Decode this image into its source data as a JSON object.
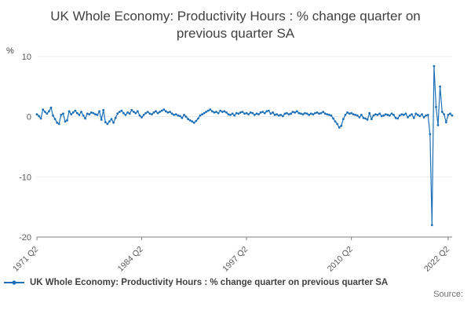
{
  "chart_data": {
    "type": "line",
    "title": "UK Whole Economy: Productivity Hours : % change quarter on previous quarter SA",
    "ylabel": "%",
    "xlabel": "",
    "ylim": [
      -20,
      10
    ],
    "yticks": [
      10,
      0,
      -10,
      -20
    ],
    "grid": true,
    "legend_position": "bottom-left",
    "line_color": "#1d70b8",
    "axis_color": "#808080",
    "tick_label_color": "#595959",
    "x_start": "1971 Q2",
    "x_end": "2022 Q4",
    "frequency": "quarterly",
    "xtick_labels": [
      "1971 Q2",
      "1984 Q2",
      "1997 Q2",
      "2010 Q2",
      "2022 Q2"
    ],
    "xtick_indices": [
      0,
      52,
      104,
      156,
      204
    ],
    "series": [
      {
        "name": "UK Whole Economy: Productivity Hours : % change quarter on previous quarter SA",
        "values": [
          0.4,
          0.1,
          -0.3,
          1.2,
          0.8,
          0.5,
          0.9,
          1.5,
          0.2,
          -0.4,
          -1.0,
          -1.2,
          0.3,
          0.5,
          -0.8,
          -0.6,
          0.9,
          0.4,
          0.7,
          1.0,
          0.6,
          0.3,
          0.8,
          0.2,
          -0.3,
          0.5,
          0.4,
          0.7,
          0.6,
          0.4,
          0.3,
          0.9,
          -0.5,
          1.1,
          -0.9,
          -1.2,
          -0.8,
          -0.4,
          -1.0,
          -0.2,
          0.5,
          0.8,
          1.0,
          0.6,
          0.3,
          0.7,
          0.5,
          1.1,
          0.8,
          0.6,
          0.9,
          0.2,
          -0.1,
          0.3,
          0.6,
          0.8,
          0.5,
          0.4,
          0.7,
          0.9,
          0.6,
          0.8,
          1.0,
          1.2,
          0.9,
          0.7,
          0.8,
          0.5,
          0.3,
          0.4,
          0.2,
          0.1,
          -0.2,
          0.3,
          0.0,
          -0.4,
          -0.6,
          -0.8,
          -1.0,
          -0.7,
          -0.3,
          0.2,
          0.4,
          0.6,
          0.8,
          1.0,
          1.2,
          0.9,
          0.7,
          0.8,
          0.6,
          1.0,
          0.8,
          0.9,
          0.7,
          0.4,
          0.3,
          0.5,
          0.2,
          0.6,
          0.5,
          0.7,
          0.8,
          0.5,
          0.6,
          0.4,
          0.7,
          0.6,
          0.3,
          0.5,
          0.4,
          0.7,
          0.8,
          0.6,
          0.9,
          1.0,
          0.5,
          0.7,
          0.3,
          0.4,
          0.2,
          0.3,
          0.1,
          0.5,
          0.6,
          0.4,
          0.5,
          0.8,
          0.7,
          0.9,
          0.6,
          0.5,
          0.4,
          0.6,
          0.5,
          0.3,
          0.5,
          0.4,
          0.6,
          0.7,
          0.5,
          0.6,
          0.8,
          0.5,
          0.4,
          0.3,
          0.2,
          -0.3,
          -0.8,
          -1.2,
          -1.8,
          -1.5,
          -0.4,
          0.3,
          0.7,
          0.5,
          0.6,
          0.4,
          0.3,
          0.2,
          -0.1,
          0.3,
          -0.2,
          -0.3,
          -0.5,
          0.6,
          -0.4,
          0.2,
          0.4,
          0.3,
          0.5,
          0.1,
          0.2,
          0.4,
          0.3,
          0.2,
          0.5,
          0.3,
          -0.2,
          -0.3,
          0.2,
          0.4,
          0.3,
          0.5,
          -0.1,
          0.2,
          0.4,
          -0.2,
          0.5,
          0.3,
          0.1,
          0.4,
          -0.1,
          0.2,
          0.3,
          -2.9,
          -18.0,
          8.4,
          1.6,
          -1.4,
          5.0,
          0.8,
          0.4,
          -0.9,
          0.3,
          0.5,
          0.2
        ]
      }
    ]
  },
  "legend": {
    "label": "UK Whole Economy: Productivity Hours : % change quarter on previous quarter SA"
  },
  "footer": {
    "source_label": "Source:"
  }
}
